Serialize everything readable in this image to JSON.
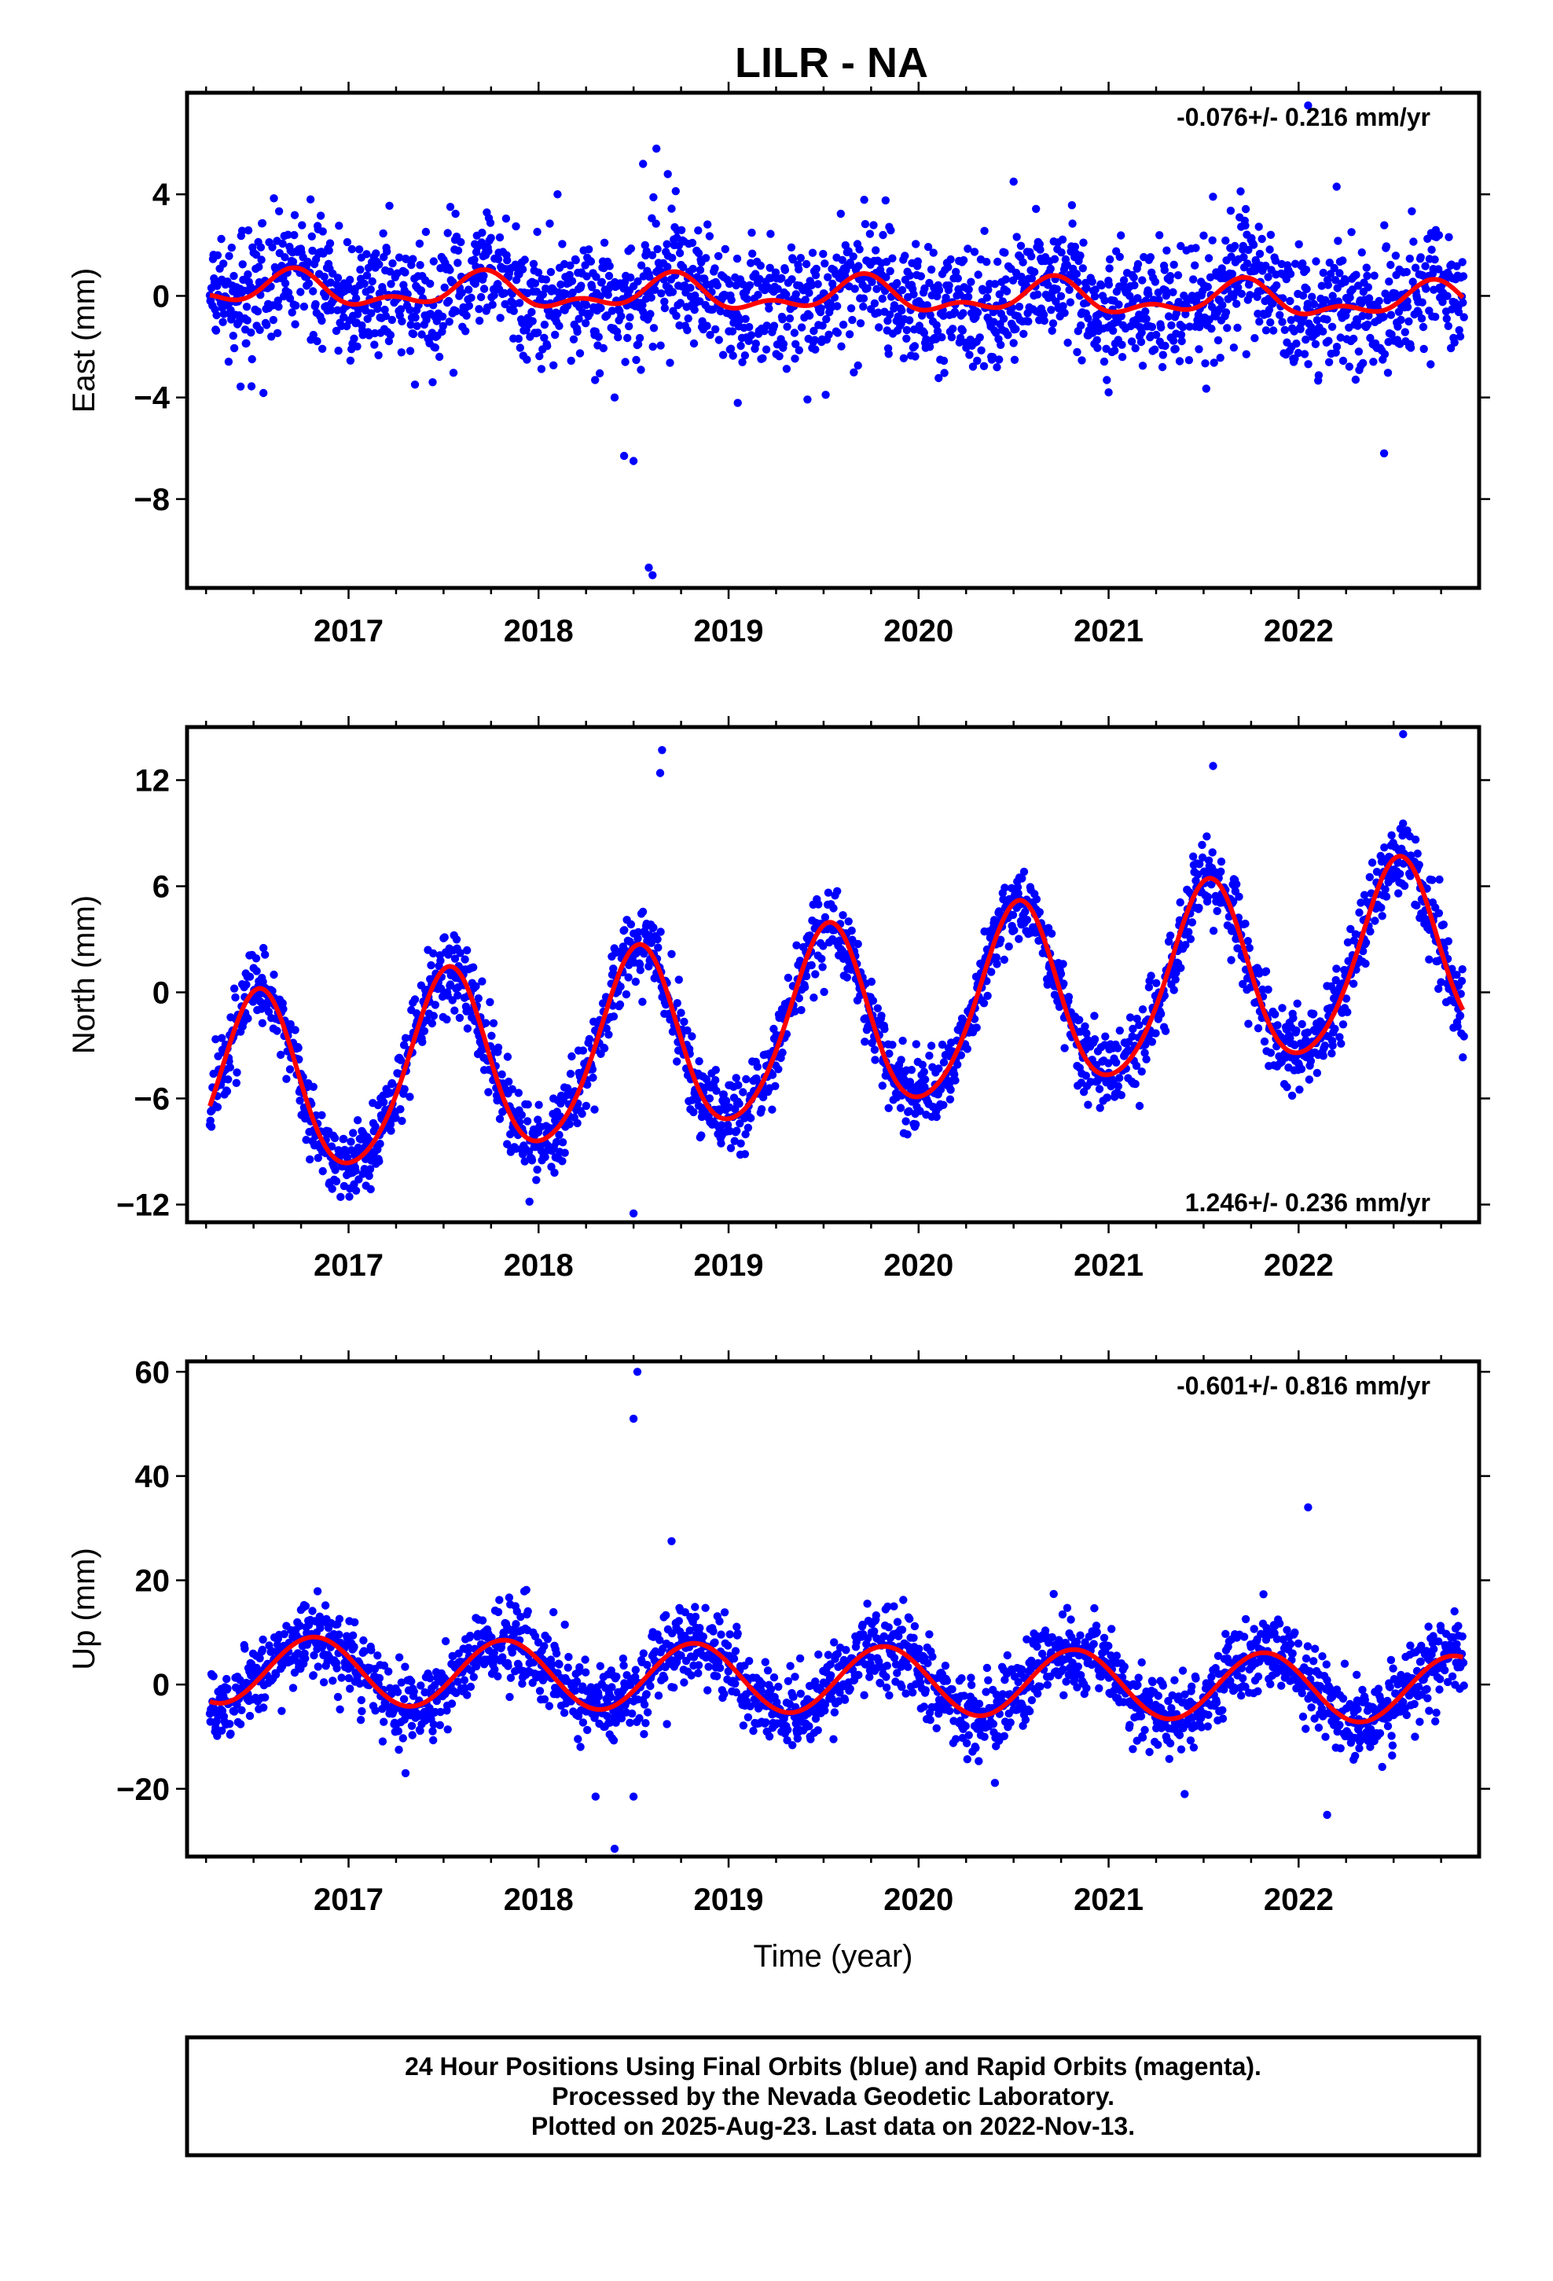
{
  "title": "LILR - NA",
  "footer": {
    "lines": [
      "24 Hour Positions Using Final Orbits (blue) and Rapid Orbits (magenta).",
      "Processed by the Nevada Geodetic Laboratory.",
      "Plotted on 2025-Aug-23. Last data on 2022-Nov-13."
    ]
  },
  "colors": {
    "points": "#0000ff",
    "fit": "#ff0000",
    "frame": "#000000"
  },
  "chart_data": [
    {
      "type": "scatter",
      "ylabel": "East (mm)",
      "xlabel": "",
      "rate_label": "-0.076+/- 0.216 mm/yr",
      "rate_position": "top-right",
      "xlim": [
        2016.15,
        2022.95
      ],
      "ylim": [
        -11.5,
        8
      ],
      "xticks": [
        2017,
        2018,
        2019,
        2020,
        2021,
        2022
      ],
      "xtick_labels": [
        "2017",
        "2018",
        "2019",
        "2020",
        "2021",
        "2022"
      ],
      "yticks": [
        4,
        0,
        -4,
        -8
      ],
      "ytick_labels": [
        "4",
        "0",
        "−4",
        "−8"
      ],
      "data_range": [
        2016.27,
        2022.87
      ],
      "trend": {
        "offset": 0.0,
        "rate": -0.076
      },
      "seasonal": [
        {
          "period": 1.0,
          "amplitude": 0.55,
          "peak": 2016.7
        },
        {
          "period": 0.5,
          "amplitude": 0.35,
          "peak": 2016.72
        }
      ],
      "scatter_sigma": 1.2,
      "outliers": [
        [
          2016.8,
          3.8
        ],
        [
          2018.1,
          4.0
        ],
        [
          2018.55,
          5.2
        ],
        [
          2018.62,
          5.8
        ],
        [
          2018.68,
          4.8
        ],
        [
          2018.6,
          -11.0
        ],
        [
          2018.58,
          -10.7
        ],
        [
          2018.45,
          -6.3
        ],
        [
          2018.5,
          -6.5
        ],
        [
          2018.4,
          -4.0
        ],
        [
          2020.5,
          4.5
        ],
        [
          2022.05,
          7.5
        ],
        [
          2022.2,
          4.3
        ],
        [
          2022.45,
          -6.2
        ],
        [
          2021.0,
          -3.8
        ]
      ]
    },
    {
      "type": "scatter",
      "ylabel": "North (mm)",
      "xlabel": "",
      "rate_label": "1.246+/- 0.236 mm/yr",
      "rate_position": "bottom-right",
      "xlim": [
        2016.15,
        2022.95
      ],
      "ylim": [
        -13,
        15
      ],
      "xticks": [
        2017,
        2018,
        2019,
        2020,
        2021,
        2022
      ],
      "xtick_labels": [
        "2017",
        "2018",
        "2019",
        "2020",
        "2021",
        "2022"
      ],
      "yticks": [
        12,
        6,
        0,
        -6,
        -12
      ],
      "ytick_labels": [
        "12",
        "6",
        "0",
        "−6",
        "−12"
      ],
      "data_range": [
        2016.27,
        2022.87
      ],
      "trend": {
        "offset": -1.85,
        "rate": 1.246
      },
      "seasonal": [
        {
          "period": 1.0,
          "amplitude": 5.2,
          "peak": 2016.52
        },
        {
          "period": 0.5,
          "amplitude": 0.6,
          "peak": 2016.55
        }
      ],
      "scatter_sigma": 1.1,
      "outliers": [
        [
          2018.65,
          13.7
        ],
        [
          2018.64,
          12.4
        ],
        [
          2018.5,
          -12.5
        ],
        [
          2022.55,
          14.6
        ],
        [
          2021.55,
          12.8
        ],
        [
          2018.85,
          -8.2
        ],
        [
          2016.27,
          -7.5
        ]
      ]
    },
    {
      "type": "scatter",
      "ylabel": "Up (mm)",
      "xlabel": "Time (year)",
      "rate_label": "-0.601+/- 0.816 mm/yr",
      "rate_position": "top-right",
      "xlim": [
        2016.15,
        2022.95
      ],
      "ylim": [
        -33,
        62
      ],
      "xticks": [
        2017,
        2018,
        2019,
        2020,
        2021,
        2022
      ],
      "xtick_labels": [
        "2017",
        "2018",
        "2019",
        "2020",
        "2021",
        "2022"
      ],
      "yticks": [
        60,
        40,
        20,
        0,
        -20
      ],
      "ytick_labels": [
        "60",
        "40",
        "20",
        "0",
        "−20"
      ],
      "data_range": [
        2016.27,
        2022.87
      ],
      "trend": {
        "offset": 1.0,
        "rate": -0.601
      },
      "seasonal": [
        {
          "period": 1.0,
          "amplitude": 6.5,
          "peak": 2016.82
        }
      ],
      "scatter_sigma": 3.8,
      "outliers": [
        [
          2018.52,
          60.0
        ],
        [
          2018.5,
          51.0
        ],
        [
          2022.05,
          34.0
        ],
        [
          2018.4,
          -31.5
        ],
        [
          2018.3,
          -21.5
        ],
        [
          2018.5,
          -21.5
        ],
        [
          2022.15,
          -25.0
        ],
        [
          2017.3,
          -17.0
        ],
        [
          2018.7,
          27.5
        ],
        [
          2021.4,
          -21.0
        ]
      ]
    }
  ]
}
